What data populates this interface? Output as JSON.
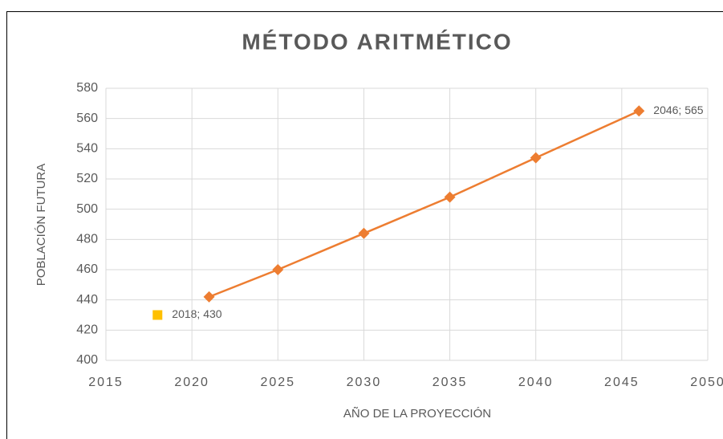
{
  "chart_data": {
    "type": "scatter",
    "title": "MÉTODO ARITMÉTICO",
    "xlabel": "AÑO  DE LA PROYECCIÓN",
    "ylabel": "POBLACIÓN FUTURA",
    "series": [
      {
        "color": "#ed7d31",
        "line": true,
        "marker": "diamond",
        "x": [
          2021,
          2025,
          2030,
          2035,
          2040,
          2046
        ],
        "values": [
          442,
          460,
          484,
          508,
          534,
          565
        ],
        "value_labels": [
          null,
          null,
          null,
          null,
          null,
          "2046; 565"
        ]
      },
      {
        "color": "#ffc000",
        "line": false,
        "marker": "square",
        "x": [
          2018
        ],
        "values": [
          430
        ],
        "value_labels": [
          "2018; 430"
        ]
      }
    ],
    "xlim": [
      2015,
      2050
    ],
    "xticks": [
      2015,
      2020,
      2025,
      2030,
      2035,
      2040,
      2045,
      2050
    ],
    "ylim": [
      400,
      580
    ],
    "yticks": [
      400,
      420,
      440,
      460,
      480,
      500,
      520,
      540,
      560,
      580
    ],
    "grid": true
  }
}
